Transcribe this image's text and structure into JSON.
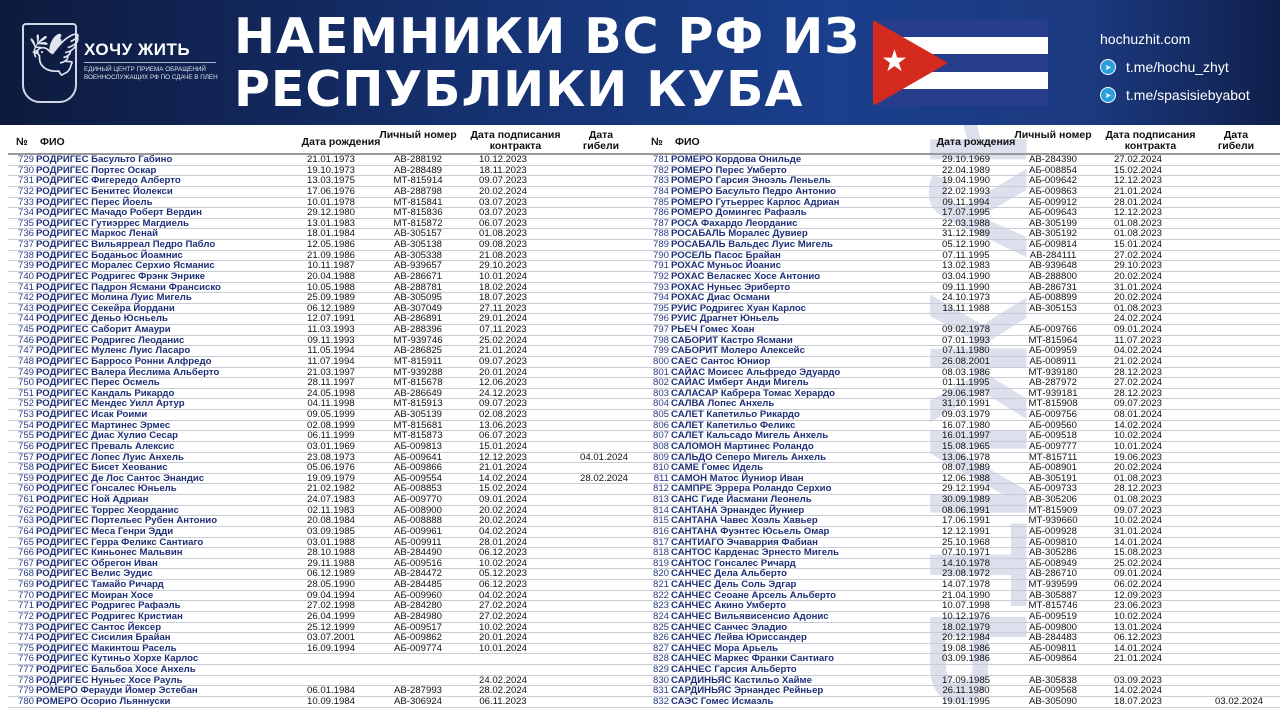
{
  "header": {
    "logo_name": "ХОЧУ ЖИТЬ",
    "logo_subtitle": "ЕДИНЫЙ ЦЕНТР ПРИЕМА ОБРАЩЕНИЙ ВОЕННОСЛУЖАЩИХ РФ ПО СДАЧЕ В ПЛЕН",
    "title_line1": "НАЕМНИКИ ВС РФ ИЗ",
    "title_line2": "РЕСПУБЛИКИ КУБА",
    "website": "hochuzhit.com",
    "telegram1": "t.me/hochu_zhyt",
    "telegram2": "t.me/spasisiebyabot",
    "flag_colors": {
      "blue": "#263e8c",
      "white": "#ffffff",
      "red": "#d52b1e"
    }
  },
  "watermark": "ХОЧУ ЖИТЬ",
  "columns": {
    "num": "№",
    "name": "ФИО",
    "birth": "Дата рождения",
    "id": "Личный номер",
    "contract": "Дата подписания контракта",
    "death": "Дата гибели"
  },
  "left_rows": [
    [
      "729",
      "РОДРИГЕС Басульто  Габино",
      "21.01.1973",
      "АВ-288192",
      "10.12.2023",
      ""
    ],
    [
      "730",
      "РОДРИГЕС Портес  Оскар",
      "19.10.1973",
      "АВ-288489",
      "18.11.2023",
      ""
    ],
    [
      "731",
      "РОДРИГЕС Фигередо  Алберто",
      "13.03.1975",
      "МТ-815914",
      "09.07.2023",
      ""
    ],
    [
      "732",
      "РОДРИГЕС Бенитес  Йолекси",
      "17.06.1976",
      "АВ-288798",
      "20.02.2024",
      ""
    ],
    [
      "733",
      "РОДРИГЕС Перес  Йоель",
      "10.01.1978",
      "МТ-815841",
      "03.07.2023",
      ""
    ],
    [
      "734",
      "РОДРИГЕС Мачадо  Роберт Вердин",
      "29.12.1980",
      "МТ-815836",
      "03.07.2023",
      ""
    ],
    [
      "735",
      "РОДРИГЕС Гутиэррес  Магдиель",
      "13.01.1983",
      "МТ-815872",
      "06.07.2023",
      ""
    ],
    [
      "736",
      "РОДРИГЕС Маркос  Ленай",
      "18.01.1984",
      "АВ-305157",
      "01.08.2023",
      ""
    ],
    [
      "737",
      "РОДРИГЕС Вильярреал  Педро Пабло",
      "12.05.1986",
      "АВ-305138",
      "09.08.2023",
      ""
    ],
    [
      "738",
      "РОДРИГЕС Боданьос  Йоамнис",
      "21.09.1986",
      "АВ-305338",
      "21.08.2023",
      ""
    ],
    [
      "739",
      "РОДРИГЕС Моралес  Серхио Ясманис",
      "10.11.1987",
      "АВ-939657",
      "29.10.2023",
      ""
    ],
    [
      "740",
      "РОДРИГЕС Родригес  Фрэнк Энрике",
      "20.04.1988",
      "АВ-286671",
      "10.01.2024",
      ""
    ],
    [
      "741",
      "РОДРИГЕС Падрон  Ясмани Франсиско",
      "10.05.1988",
      "АВ-288781",
      "18.02.2024",
      ""
    ],
    [
      "742",
      "РОДРИГЕС Молина  Луис Мигель",
      "25.09.1989",
      "АВ-305095",
      "18.07.2023",
      ""
    ],
    [
      "743",
      "РОДРИГЕС Секейра  Йордани",
      "06.12.1989",
      "АВ-307049",
      "27.11.2023",
      ""
    ],
    [
      "744",
      "РОДРИГЕС Деньо  Юсньель",
      "12.07.1991",
      "АВ-286891",
      "29.01.2024",
      ""
    ],
    [
      "745",
      "РОДРИГЕС Саборит  Амаури",
      "11.03.1993",
      "АВ-288396",
      "07.11.2023",
      ""
    ],
    [
      "746",
      "РОДРИГЕС Родригес  Леоданис",
      "09.11.1993",
      "МТ-939746",
      "25.02.2024",
      ""
    ],
    [
      "747",
      "РОДРИГЕС Муленс  Луис Ласаро",
      "11.05.1994",
      "АВ-286825",
      "21.01.2024",
      ""
    ],
    [
      "748",
      "РОДРИГЕС Барросо  Ронни Алфредо",
      "11.07.1994",
      "МТ-815911",
      "09.07.2023",
      ""
    ],
    [
      "749",
      "РОДРИГЕС Валера  Йеслима Альберто",
      "21.03.1997",
      "МТ-939288",
      "20.01.2024",
      ""
    ],
    [
      "750",
      "РОДРИГЕС Перес  Осмель",
      "28.11.1997",
      "МТ-815678",
      "12.06.2023",
      ""
    ],
    [
      "751",
      "РОДРИГЕС Кандаль  Рикардо",
      "24.05.1998",
      "АВ-286649",
      "24.12.2023",
      ""
    ],
    [
      "752",
      "РОДРИГЕС Мендес  Уилл Артур",
      "04.11.1998",
      "МТ-815913",
      "09.07.2023",
      ""
    ],
    [
      "753",
      "РОДРИГЕС Исак  Роими",
      "09.05.1999",
      "АВ-305139",
      "02.08.2023",
      ""
    ],
    [
      "754",
      "РОДРИГЕС Мартинес  Эрмес",
      "02.08.1999",
      "МТ-815681",
      "13.06.2023",
      ""
    ],
    [
      "755",
      "РОДРИГЕС Диас  Хулио Сесар",
      "06.11.1999",
      "МТ-815873",
      "06.07.2023",
      ""
    ],
    [
      "756",
      "РОДРИГЕС Преваль  Алексис",
      "03.01.1969",
      "АБ-009813",
      "15.01.2024",
      ""
    ],
    [
      "757",
      "РОДРИГЕС Лопес  Луис Анхель",
      "23.08.1973",
      "АБ-009641",
      "12.12.2023",
      "04.01.2024"
    ],
    [
      "758",
      "РОДРИГЕС Бисет  Хеованис",
      "05.06.1976",
      "АБ-009866",
      "21.01.2024",
      ""
    ],
    [
      "759",
      "РОДРИГЕС Де  Лос Сантос Энандис",
      "19.09.1979",
      "АБ-009554",
      "14.02.2024",
      "28.02.2024"
    ],
    [
      "760",
      "РОДРИГЕС Гонсалес  Юньель",
      "21.02.1982",
      "АБ-008853",
      "15.02.2024",
      ""
    ],
    [
      "761",
      "РОДРИГЕС Ной  Адриан",
      "24.07.1983",
      "АБ-009770",
      "09.01.2024",
      ""
    ],
    [
      "762",
      "РОДРИГЕС Торрес  Хеорданис",
      "02.11.1983",
      "АБ-008900",
      "20.02.2024",
      ""
    ],
    [
      "763",
      "РОДРИГЕС Портельес  Рубен Антонио",
      "20.08.1984",
      "АБ-008888",
      "20.02.2024",
      ""
    ],
    [
      "764",
      "РОДРИГЕС Меса  Генри Эдди",
      "03.09.1985",
      "АБ-009961",
      "04.02.2024",
      ""
    ],
    [
      "765",
      "РОДРИГЕС Герра  Феликс Сантиаго",
      "03.01.1988",
      "АБ-009911",
      "28.01.2024",
      ""
    ],
    [
      "766",
      "РОДРИГЕС Киньонес  Мальвин",
      "28.10.1988",
      "АВ-284490",
      "06.12.2023",
      ""
    ],
    [
      "767",
      "РОДРИГЕС Обрегон  Иван",
      "29.11.1988",
      "АБ-009516",
      "10.02.2024",
      ""
    ],
    [
      "768",
      "РОДРИГЕС Велис  Эудис",
      "06.12.1989",
      "АВ-284472",
      "05.12.2023",
      ""
    ],
    [
      "769",
      "РОДРИГЕС Тамайо  Ричард",
      "28.05.1990",
      "АВ-284485",
      "06.12.2023",
      ""
    ],
    [
      "770",
      "РОДРИГЕС Моиран  Хосе",
      "09.04.1994",
      "АБ-009960",
      "04.02.2024",
      ""
    ],
    [
      "771",
      "РОДРИГЕС Родригес  Рафаэль",
      "27.02.1998",
      "АВ-284280",
      "27.02.2024",
      ""
    ],
    [
      "772",
      "РОДРИГЕС Родригес  Кристиан",
      "26.04.1999",
      "АВ-284980",
      "27.02.2024",
      ""
    ],
    [
      "773",
      "РОДРИГЕС Сантос  Йексер",
      "25.12.1999",
      "АБ-009517",
      "10.02.2024",
      ""
    ],
    [
      "774",
      "РОДРИГЕС Сисилия  Брайан",
      "03.07.2001",
      "АБ-009862",
      "20.01.2024",
      ""
    ],
    [
      "775",
      "РОДРИГЕС Макинтош Расель",
      "16.09.1994",
      "АБ-009774",
      "10.01.2024",
      ""
    ],
    [
      "776",
      "РОДРИГЕС Кутиньо Хорхе Карлос",
      "",
      "",
      "",
      ""
    ],
    [
      "777",
      "РОДРИГЕС Бальбоа Хосе Анхель",
      "",
      "",
      "",
      ""
    ],
    [
      "778",
      "РОДРИГЕС Нуньес Хосе Рауль",
      "",
      "",
      "24.02.2024",
      ""
    ],
    [
      "779",
      "РОМЕРО Ферауди  Йомер Эстебан",
      "06.01.1984",
      "АВ-287993",
      "28.02.2024",
      ""
    ],
    [
      "780",
      "РОМЕРО Осорио  Льяннуски",
      "10.09.1984",
      "АВ-306924",
      "06.11.2023",
      ""
    ]
  ],
  "right_rows": [
    [
      "781",
      "РОМЕРО Кордова  Онильде",
      "29.10.1969",
      "АВ-284390",
      "27.02.2024",
      ""
    ],
    [
      "782",
      "РОМЕРО Перес  Умберто",
      "22.04.1989",
      "АБ-008854",
      "15.02.2024",
      ""
    ],
    [
      "783",
      "РОМЕРО Гарсия  Эноэль Леньель",
      "19.04.1990",
      "АБ-009642",
      "12.12.2023",
      ""
    ],
    [
      "784",
      "РОМЕРО Басульто  Педро Антонио",
      "22.02.1993",
      "АБ-009863",
      "21.01.2024",
      ""
    ],
    [
      "785",
      "РОМЕРО Гутьеррес  Карлос Адриан",
      "09.11.1994",
      "АБ-009912",
      "28.01.2024",
      ""
    ],
    [
      "786",
      "РОМЕРО Домингес  Рафаэль",
      "17.07.1995",
      "АБ-009643",
      "12.12.2023",
      ""
    ],
    [
      "787",
      "РОСА Фахардо  Леорданис",
      "22.03.1988",
      "АВ-305199",
      "01.08.2023",
      ""
    ],
    [
      "788",
      "РОСАБАЛЬ Моралес  Дувиер",
      "31.12.1989",
      "АВ-305192",
      "01.08.2023",
      ""
    ],
    [
      "789",
      "РОСАБАЛЬ Вальдес  Луис Мигель",
      "05.12.1990",
      "АБ-009814",
      "15.01.2024",
      ""
    ],
    [
      "790",
      "РОСЕЛЬ Пасос  Брайан",
      "07.11.1995",
      "АВ-284111",
      "27.02.2024",
      ""
    ],
    [
      "791",
      "РОХАС Муньос  Йоанис",
      "13.02.1983",
      "АВ-939648",
      "29.10.2023",
      ""
    ],
    [
      "792",
      "РОХАС Веласкес  Хосе Антонио",
      "03.04.1990",
      "АВ-288800",
      "20.02.2024",
      ""
    ],
    [
      "793",
      "РОХАС Нуньес  Эриберто",
      "09.11.1990",
      "АВ-286731",
      "31.01.2024",
      ""
    ],
    [
      "794",
      "РОХАС Диас  Османи",
      "24.10.1973",
      "АБ-008899",
      "20.02.2024",
      ""
    ],
    [
      "795",
      "РУИС Родригес  Хуан Карлос",
      "13.11.1988",
      "АВ-305153",
      "01.08.2023",
      ""
    ],
    [
      "796",
      "РУИС Драгнет Юньель",
      "",
      "",
      "24.02.2024",
      ""
    ],
    [
      "797",
      "РЬЕЧ Гомес  Хоан",
      "09.02.1978",
      "АБ-009766",
      "09.01.2024",
      ""
    ],
    [
      "798",
      "САБОРИТ Кастро  Ясмани",
      "07.01.1993",
      "МТ-815964",
      "11.07.2023",
      ""
    ],
    [
      "799",
      "САБОРИТ Молеро  Алексейс",
      "07.11.1980",
      "АБ-009959",
      "04.02.2024",
      ""
    ],
    [
      "800",
      "САЕС Сантос  Юниор",
      "26.08.2001",
      "АБ-008911",
      "21.02.2024",
      ""
    ],
    [
      "801",
      "САЙАС Моисес  Альфредо Эдуардо",
      "08.03.1986",
      "МТ-939180",
      "28.12.2023",
      ""
    ],
    [
      "802",
      "САЙАС Имберт  Анди Мигель",
      "01.11.1995",
      "АВ-287972",
      "27.02.2024",
      ""
    ],
    [
      "803",
      "САЛАСАР Кабрера  Томас Херардо",
      "29.06.1987",
      "МТ-939181",
      "28.12.2023",
      ""
    ],
    [
      "804",
      "САЛВА Лопес  Анхель",
      "31.10.1991",
      "МТ-815908",
      "09.07.2023",
      ""
    ],
    [
      "805",
      "САЛЕТ Капетильо  Рикардо",
      "09.03.1979",
      "АБ-009756",
      "08.01.2024",
      ""
    ],
    [
      "806",
      "САЛЕТ Капетильо  Феликс",
      "16.07.1980",
      "АБ-009560",
      "14.02.2024",
      ""
    ],
    [
      "807",
      "САЛЕТ Кальсадо  Мигель Анхель",
      "16.01.1997",
      "АБ-009518",
      "10.02.2024",
      ""
    ],
    [
      "808",
      "САЛОМОН Мартинес  Роландо",
      "15.08.1965",
      "АБ-009777",
      "10.01.2024",
      ""
    ],
    [
      "809",
      "САЛЬДО Сеперо  Мигель Анхель",
      "13.06.1978",
      "МТ-815711",
      "19.06.2023",
      ""
    ],
    [
      "810",
      "САМЕ Гомес  Идель",
      "08.07.1989",
      "АБ-008901",
      "20.02.2024",
      ""
    ],
    [
      "811",
      "САМОН Матос  Йуниор Иван",
      "12.06.1988",
      "АВ-305191",
      "01.08.2023",
      ""
    ],
    [
      "812",
      "САМПРЕ Эррера  Роландо Серхио",
      "29.12.1994",
      "АБ-009733",
      "28.12.2023",
      ""
    ],
    [
      "813",
      "САНС Гиде  Йасмани Леонель",
      "30.09.1989",
      "АВ-305206",
      "01.08.2023",
      ""
    ],
    [
      "814",
      "САНТАНА Эрнандес  Йуниер",
      "08.06.1991",
      "МТ-815909",
      "09.07.2023",
      ""
    ],
    [
      "815",
      "САНТАНА Чавес  Хоэль Хавьер",
      "17.06.1991",
      "МТ-939660",
      "10.02.2024",
      ""
    ],
    [
      "816",
      "САНТАНА Фуэнтес  Юсьель Омар",
      "12.12.1991",
      "АБ-009928",
      "31.01.2024",
      ""
    ],
    [
      "817",
      "САНТИАГО Эчаваррия  Фабиан",
      "25.10.1968",
      "АБ-009810",
      "14.01.2024",
      ""
    ],
    [
      "818",
      "САНТОС Карденас  Эрнесто Мигель",
      "07.10.1971",
      "АВ-305286",
      "15.08.2023",
      ""
    ],
    [
      "819",
      "САНТОС Гонсалес  Ричард",
      "14.10.1978",
      "АБ-008949",
      "25.02.2024",
      ""
    ],
    [
      "820",
      "САНЧЕС Дела  Альберто",
      "23.08.1972",
      "АВ-286710",
      "09.01.2024",
      ""
    ],
    [
      "821",
      "САНЧЕС Дель  Соль Эдгар",
      "14.07.1978",
      "МТ-939599",
      "06.02.2024",
      ""
    ],
    [
      "822",
      "САНЧЕС Сеоане  Арсель Альберто",
      "21.04.1990",
      "АВ-305887",
      "12.09.2023",
      ""
    ],
    [
      "823",
      "САНЧЕС Акино  Умберто",
      "10.07.1998",
      "МТ-815746",
      "23.06.2023",
      ""
    ],
    [
      "824",
      "САНЧЕС Вильявисенсио  Адонис",
      "10.12.1976",
      "АБ-009519",
      "10.02.2024",
      ""
    ],
    [
      "825",
      "САНЧЕС Санчес  Эладио",
      "18.02.1979",
      "АБ-009800",
      "13.01.2024",
      ""
    ],
    [
      "826",
      "САНЧЕС Лейва  Юриссандер",
      "20.12.1984",
      "АВ-284483",
      "06.12.2023",
      ""
    ],
    [
      "827",
      "САНЧЕС Мора  Арьель",
      "19.08.1986",
      "АБ-009811",
      "14.01.2024",
      ""
    ],
    [
      "828",
      "САНЧЕС Маркес  Франки Сантиаго",
      "03.09.1986",
      "АБ-009864",
      "21.01.2024",
      ""
    ],
    [
      "829",
      "САНЧЕС Гарсия Альберто",
      "",
      "",
      "",
      ""
    ],
    [
      "830",
      "САРДИНЬЯС Кастильо  Хайме",
      "17.09.1985",
      "АВ-305838",
      "03.09.2023",
      ""
    ],
    [
      "831",
      "САРДИНЬЯС Эрнандес  Рейньер",
      "26.11.1980",
      "АБ-009568",
      "14.02.2024",
      ""
    ],
    [
      "832",
      "САЭС Гомес  Исмаэль",
      "19.01.1995",
      "АВ-305090",
      "18.07.2023",
      "03.02.2024"
    ]
  ]
}
